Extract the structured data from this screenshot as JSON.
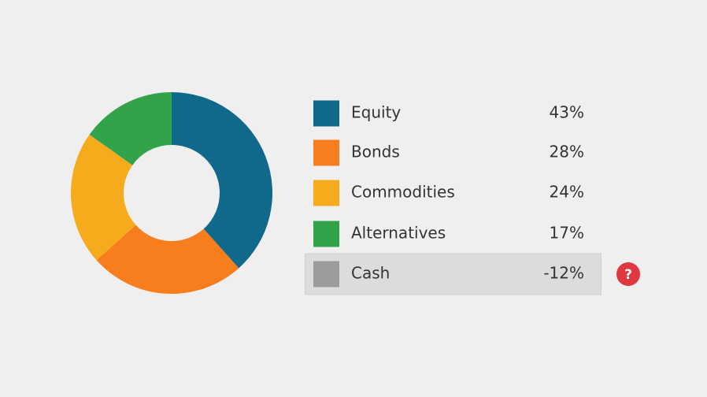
{
  "chart_data": {
    "type": "donut",
    "categories": [
      "Equity",
      "Bonds",
      "Commodities",
      "Alternatives",
      "Cash"
    ],
    "values": [
      43,
      28,
      24,
      17,
      -12
    ],
    "value_labels": [
      "43%",
      "28%",
      "24%",
      "17%",
      "-12%"
    ],
    "colors": [
      "#10698b",
      "#f87d1c",
      "#f5ab1c",
      "#33a34a",
      "#9c9c9c"
    ],
    "annotation": "?"
  }
}
